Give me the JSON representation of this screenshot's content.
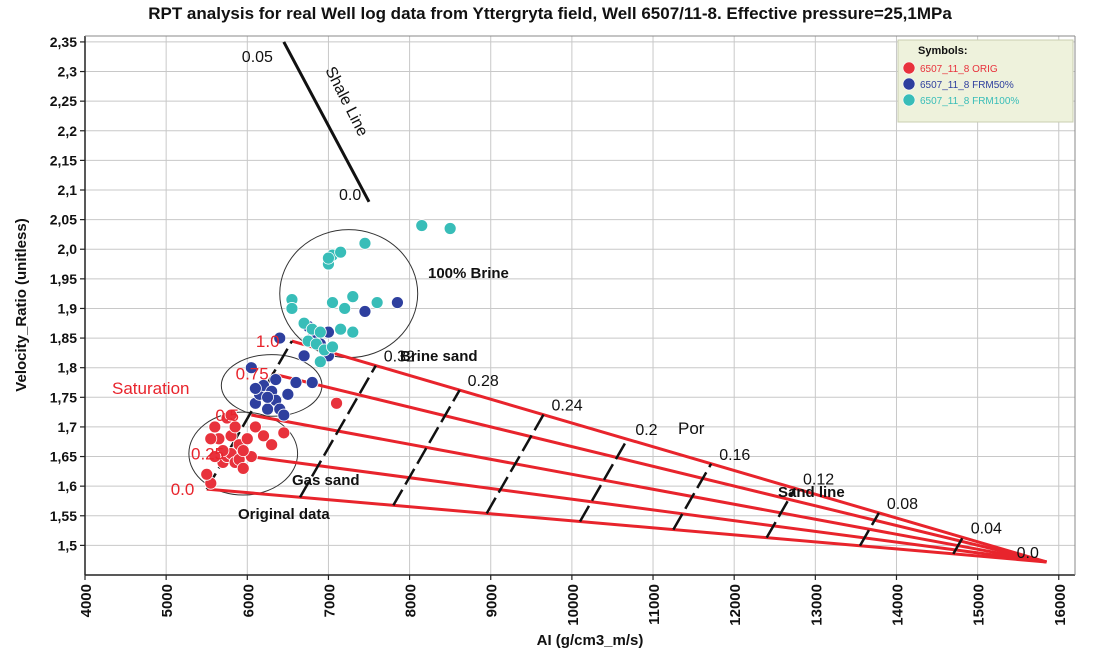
{
  "chart_data": {
    "type": "scatter",
    "title": "RPT analysis for real Well log data from Yttergryta field, Well 6507/11-8. Effective pressure=25,1MPa",
    "xlabel": "AI  (g/cm3_m/s)",
    "ylabel": "Velocity_Ratio  (unitless)",
    "xlim": [
      4000,
      16200
    ],
    "ylim": [
      1.45,
      2.36
    ],
    "x_ticks": [
      4000,
      5000,
      6000,
      7000,
      8000,
      9000,
      10000,
      11000,
      12000,
      13000,
      14000,
      15000,
      16000
    ],
    "y_ticks": [
      1.5,
      1.55,
      1.6,
      1.65,
      1.7,
      1.75,
      1.8,
      1.85,
      1.9,
      1.95,
      2.0,
      2.05,
      2.1,
      2.15,
      2.2,
      2.25,
      2.3,
      2.35
    ],
    "y_tick_labels": [
      "1,5",
      "1,55",
      "1,6",
      "1,65",
      "1,7",
      "1,75",
      "1,8",
      "1,85",
      "1,9",
      "1,95",
      "2,0",
      "2,05",
      "2,1",
      "2,15",
      "2,2",
      "2,25",
      "2,3",
      "2,35"
    ],
    "grid": true,
    "legend": {
      "title": "Symbols:",
      "position": "top-right",
      "entries": [
        {
          "label": "6507_11_8 ORIG",
          "color": "#e8323c"
        },
        {
          "label": "6507_11_8 FRM50%",
          "color": "#2e3f9e"
        },
        {
          "label": "6507_11_8 FRM100%",
          "color": "#38bdb8"
        }
      ]
    },
    "series": [
      {
        "name": "6507_11_8 ORIG",
        "color": "#e8323c",
        "points": [
          [
            5550,
            1.605
          ],
          [
            5500,
            1.62
          ],
          [
            5700,
            1.64
          ],
          [
            5750,
            1.65
          ],
          [
            5800,
            1.655
          ],
          [
            5850,
            1.64
          ],
          [
            5900,
            1.645
          ],
          [
            5950,
            1.63
          ],
          [
            5700,
            1.66
          ],
          [
            5650,
            1.68
          ],
          [
            5800,
            1.685
          ],
          [
            5600,
            1.7
          ],
          [
            5550,
            1.68
          ],
          [
            5850,
            1.7
          ],
          [
            5900,
            1.67
          ],
          [
            5750,
            1.715
          ],
          [
            6000,
            1.68
          ],
          [
            6100,
            1.7
          ],
          [
            6200,
            1.685
          ],
          [
            6300,
            1.67
          ],
          [
            6450,
            1.69
          ],
          [
            5800,
            1.72
          ],
          [
            6050,
            1.65
          ],
          [
            7100,
            1.74
          ],
          [
            5600,
            1.65
          ],
          [
            5950,
            1.66
          ]
        ]
      },
      {
        "name": "6507_11_8 FRM50%",
        "color": "#2e3f9e",
        "points": [
          [
            6100,
            1.74
          ],
          [
            6150,
            1.755
          ],
          [
            6200,
            1.77
          ],
          [
            6250,
            1.73
          ],
          [
            6300,
            1.76
          ],
          [
            6350,
            1.745
          ],
          [
            6400,
            1.73
          ],
          [
            6450,
            1.72
          ],
          [
            6500,
            1.755
          ],
          [
            6100,
            1.765
          ],
          [
            6050,
            1.8
          ],
          [
            6600,
            1.775
          ],
          [
            6800,
            1.775
          ],
          [
            6350,
            1.78
          ],
          [
            6700,
            1.82
          ],
          [
            6800,
            1.85
          ],
          [
            6900,
            1.84
          ],
          [
            7000,
            1.82
          ],
          [
            6750,
            1.87
          ],
          [
            7000,
            1.86
          ],
          [
            7450,
            1.895
          ],
          [
            7850,
            1.91
          ],
          [
            6400,
            1.85
          ],
          [
            6250,
            1.75
          ]
        ]
      },
      {
        "name": "6507_11_8 FRM100%",
        "color": "#38bdb8",
        "points": [
          [
            6550,
            1.915
          ],
          [
            6550,
            1.9
          ],
          [
            6700,
            1.875
          ],
          [
            6800,
            1.865
          ],
          [
            6900,
            1.86
          ],
          [
            6750,
            1.845
          ],
          [
            6850,
            1.84
          ],
          [
            6950,
            1.83
          ],
          [
            7050,
            1.835
          ],
          [
            7150,
            1.865
          ],
          [
            7000,
            1.975
          ],
          [
            7050,
            1.99
          ],
          [
            7150,
            1.995
          ],
          [
            7000,
            1.985
          ],
          [
            7450,
            2.01
          ],
          [
            7300,
            1.92
          ],
          [
            7200,
            1.9
          ],
          [
            7600,
            1.91
          ],
          [
            7300,
            1.86
          ],
          [
            8150,
            2.04
          ],
          [
            8500,
            2.035
          ],
          [
            6900,
            1.81
          ],
          [
            7050,
            1.91
          ]
        ]
      }
    ],
    "template_lines": {
      "porosity_values": [
        0.32,
        0.28,
        0.24,
        0.2,
        0.16,
        0.12,
        0.08,
        0.04
      ],
      "porosity_labels": [
        "0.32",
        "0.28",
        "0.24",
        "0.2",
        "0.16",
        "0.12",
        "0.08",
        "0.04"
      ],
      "endpoint_label": "0.0",
      "saturation_labels": [
        "0.0",
        "0.25",
        "0.5",
        "0.75",
        "1.0"
      ],
      "saturation_fans": [
        {
          "sat": 0.0,
          "start": [
            5500,
            1.595
          ]
        },
        {
          "sat": 0.25,
          "start": [
            5750,
            1.655
          ]
        },
        {
          "sat": 0.5,
          "start": [
            6050,
            1.72
          ]
        },
        {
          "sat": 0.75,
          "start": [
            6300,
            1.79
          ]
        },
        {
          "sat": 1.0,
          "start": [
            6550,
            1.845
          ]
        }
      ],
      "endpoint": [
        15850,
        1.472
      ],
      "sand_line_start": [
        5500,
        1.595
      ],
      "shale_line": {
        "start": [
          6450,
          2.35
        ],
        "end": [
          7500,
          2.08
        ],
        "start_label": "0.05",
        "end_label": "0.0"
      }
    },
    "annotations": {
      "shale_line": "Shale Line",
      "brine_100": "100% Brine",
      "brine_sand": "Brine sand",
      "gas_sand": "Gas sand",
      "original_data": "Original data",
      "saturation": "Saturation",
      "por": "Por",
      "sand_line": "Sand line"
    }
  }
}
